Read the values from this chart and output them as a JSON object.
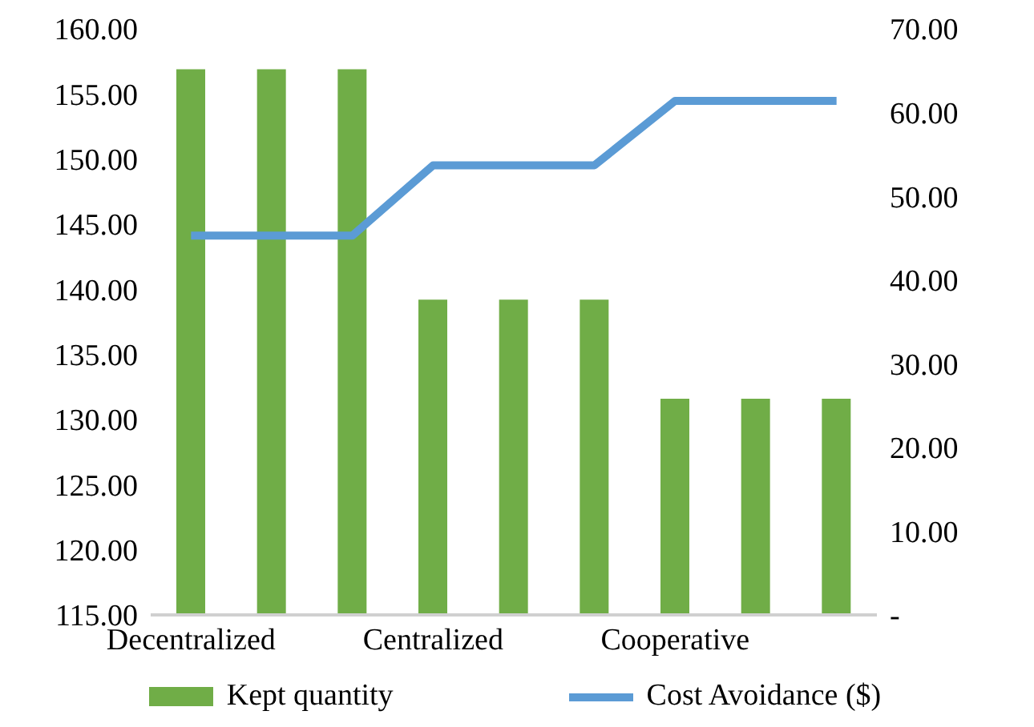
{
  "chart_data": {
    "type": "bar",
    "categories": [
      "Decentralized",
      null,
      null,
      "Centralized",
      null,
      null,
      "Cooperative",
      null,
      null
    ],
    "series": [
      {
        "name": "Kept quantity",
        "color": "#70ad47",
        "values": [
          156.9,
          156.9,
          156.9,
          139.2,
          139.2,
          139.2,
          131.6,
          131.6,
          131.6
        ]
      },
      {
        "name": "Cost Avoidance ($)",
        "type": "line",
        "axis": "y2",
        "color": "#5b9bd5",
        "values": [
          45.3,
          45.3,
          45.3,
          53.7,
          53.7,
          53.7,
          61.4,
          61.4,
          61.4
        ]
      }
    ],
    "ylim": [
      115,
      160
    ],
    "yticks": [
      {
        "value": 115,
        "label": "115.00"
      },
      {
        "value": 120,
        "label": "120.00"
      },
      {
        "value": 125,
        "label": "125.00"
      },
      {
        "value": 130,
        "label": "130.00"
      },
      {
        "value": 135,
        "label": "135.00"
      },
      {
        "value": 140,
        "label": "140.00"
      },
      {
        "value": 145,
        "label": "145.00"
      },
      {
        "value": 150,
        "label": "150.00"
      },
      {
        "value": 155,
        "label": "155.00"
      },
      {
        "value": 160,
        "label": "160.00"
      }
    ],
    "y2lim": [
      0,
      70
    ],
    "y2ticks": [
      {
        "value": 0,
        "label": "-"
      },
      {
        "value": 10,
        "label": "10.00"
      },
      {
        "value": 20,
        "label": "20.00"
      },
      {
        "value": 30,
        "label": "30.00"
      },
      {
        "value": 40,
        "label": "40.00"
      },
      {
        "value": 50,
        "label": "50.00"
      },
      {
        "value": 60,
        "label": "60.00"
      },
      {
        "value": 70,
        "label": "70.00"
      }
    ],
    "grid": false,
    "legend": "bottom",
    "marker": "none",
    "line_style": "solid"
  }
}
